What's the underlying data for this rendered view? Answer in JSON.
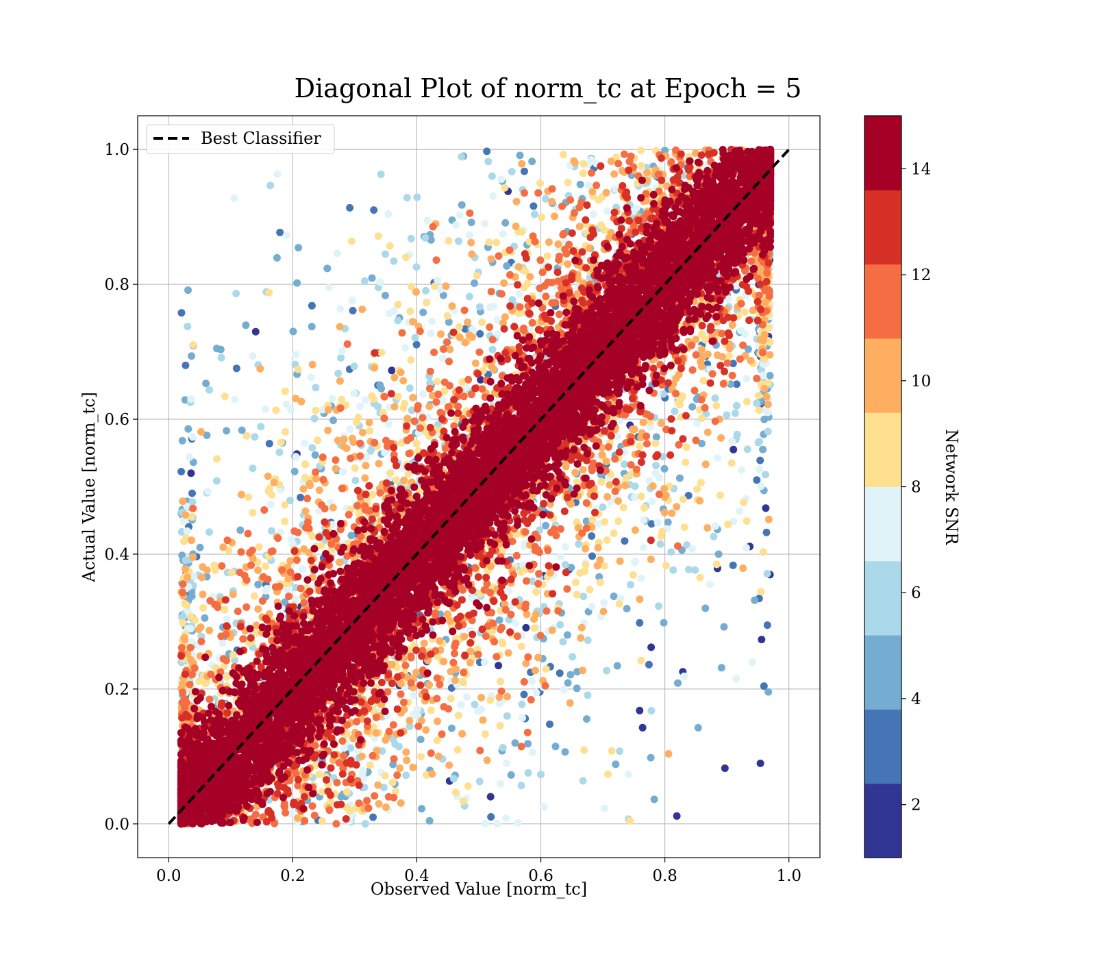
{
  "chart_data": {
    "type": "scatter",
    "title": "Diagonal Plot of norm_tc at Epoch = 5",
    "xlabel": "Observed Value [norm_tc]",
    "ylabel": "Actual Value [norm_tc]",
    "xlim": [
      -0.05,
      1.05
    ],
    "ylim": [
      -0.05,
      1.05
    ],
    "xticks": [
      "0.0",
      "0.2",
      "0.4",
      "0.6",
      "0.8",
      "1.0"
    ],
    "yticks": [
      "0.0",
      "0.2",
      "0.4",
      "0.6",
      "0.8",
      "1.0"
    ],
    "grid": true,
    "legend": {
      "placement": "upper-left",
      "entries": [
        {
          "label": "Best Classifier",
          "style": "dashed",
          "color": "#000000"
        }
      ]
    },
    "reference_line": {
      "label": "Best Classifier",
      "x": [
        0,
        1
      ],
      "y": [
        0,
        1
      ]
    },
    "colorbar": {
      "label": "Network SNR",
      "range": [
        1,
        15
      ],
      "ticks": [
        "2",
        "4",
        "6",
        "8",
        "10",
        "12",
        "14"
      ],
      "tick_values": [
        2,
        4,
        6,
        8,
        10,
        12,
        14
      ],
      "colors": [
        "#313695",
        "#4575b4",
        "#74add1",
        "#abd9e9",
        "#e0f3f8",
        "#fee090",
        "#fdae61",
        "#f46d43",
        "#d73027",
        "#a50026"
      ]
    },
    "scatter_description": {
      "n_points_estimate": 20000,
      "observed_range": [
        0.02,
        0.97
      ],
      "actual_range": [
        0.0,
        1.0
      ],
      "high_snr_band_halfwidth": 0.1,
      "low_snr_spread": 0.45
    }
  }
}
